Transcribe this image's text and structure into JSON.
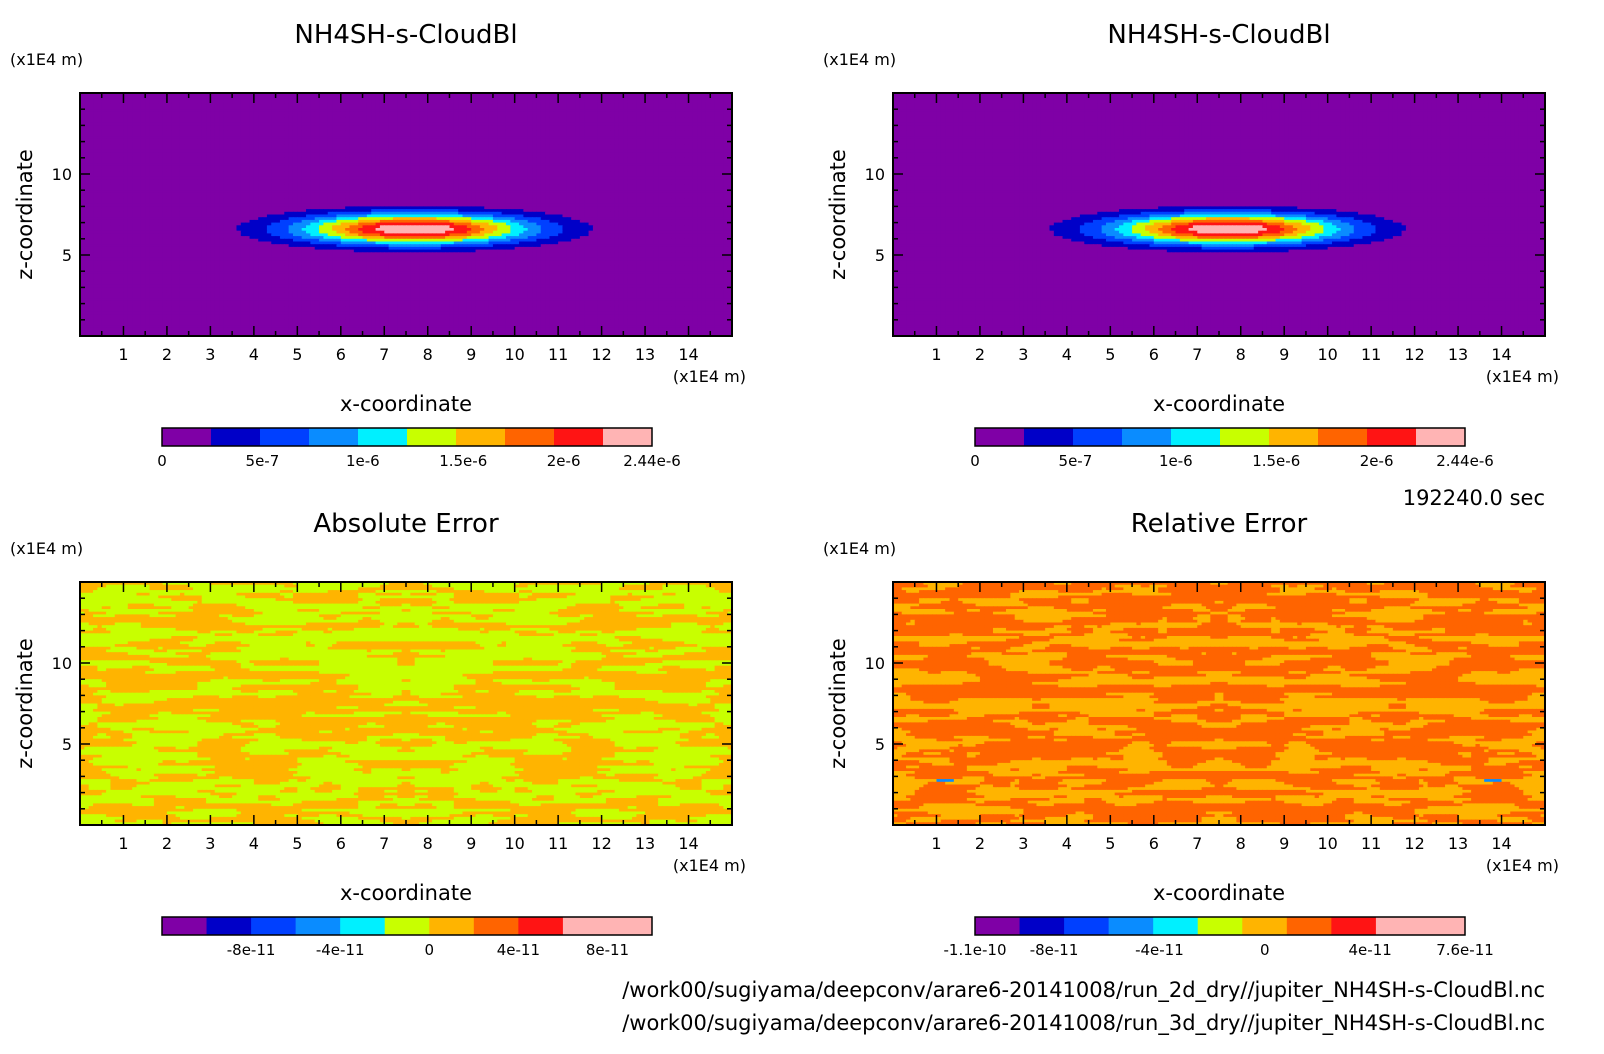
{
  "time_label": "192240.0 sec",
  "file_paths": [
    "/work00/sugiyama/deepconv/arare6-20141008/run_2d_dry//jupiter_NH4SH-s-CloudBl.nc",
    "/work00/sugiyama/deepconv/arare6-20141008/run_3d_dry//jupiter_NH4SH-s-CloudBl.nc"
  ],
  "chart_data": [
    {
      "type": "heatmap",
      "title": "NH4SH-s-CloudBl",
      "xlabel": "x-coordinate",
      "ylabel": "z-coordinate",
      "x_unit": "(x1E4 m)",
      "y_unit": "(x1E4 m)",
      "xlim": [
        0,
        15
      ],
      "ylim": [
        0,
        15
      ],
      "x_ticks": [
        "1",
        "2",
        "3",
        "4",
        "5",
        "6",
        "7",
        "8",
        "9",
        "10",
        "11",
        "12",
        "13",
        "14"
      ],
      "y_ticks": [
        "5",
        "10"
      ],
      "colorbar_levels": [
        0,
        2.44e-07,
        4.88e-07,
        7.32e-07,
        9.76e-07,
        1.22e-06,
        1.464e-06,
        1.708e-06,
        1.952e-06,
        2.196e-06,
        2.44e-06
      ],
      "colorbar_tick_labels": [
        "0",
        "5e-7",
        "1e-6",
        "1.5e-6",
        "2e-6",
        "2.44e-6"
      ],
      "background_value": 0,
      "feature": {
        "kind": "gaussian-blob",
        "peak": 2.44e-06,
        "center_x": 7.7,
        "center_z": 6.6,
        "half_width_x": 3.4,
        "half_width_z": 1.2
      }
    },
    {
      "type": "heatmap",
      "title": "NH4SH-s-CloudBl",
      "xlabel": "x-coordinate",
      "ylabel": "z-coordinate",
      "x_unit": "(x1E4 m)",
      "y_unit": "(x1E4 m)",
      "xlim": [
        0,
        15
      ],
      "ylim": [
        0,
        15
      ],
      "x_ticks": [
        "1",
        "2",
        "3",
        "4",
        "5",
        "6",
        "7",
        "8",
        "9",
        "10",
        "11",
        "12",
        "13",
        "14"
      ],
      "y_ticks": [
        "5",
        "10"
      ],
      "colorbar_levels": [
        0,
        2.44e-07,
        4.88e-07,
        7.32e-07,
        9.76e-07,
        1.22e-06,
        1.464e-06,
        1.708e-06,
        1.952e-06,
        2.196e-06,
        2.44e-06
      ],
      "colorbar_tick_labels": [
        "0",
        "5e-7",
        "1e-6",
        "1.5e-6",
        "2e-6",
        "2.44e-6"
      ],
      "background_value": 0,
      "feature": {
        "kind": "gaussian-blob",
        "peak": 2.44e-06,
        "center_x": 7.7,
        "center_z": 6.6,
        "half_width_x": 3.4,
        "half_width_z": 1.2
      }
    },
    {
      "type": "heatmap",
      "title": "Absolute Error",
      "xlabel": "x-coordinate",
      "ylabel": "z-coordinate",
      "x_unit": "(x1E4 m)",
      "y_unit": "(x1E4 m)",
      "xlim": [
        0,
        15
      ],
      "ylim": [
        0,
        15
      ],
      "x_ticks": [
        "1",
        "2",
        "3",
        "4",
        "5",
        "6",
        "7",
        "8",
        "9",
        "10",
        "11",
        "12",
        "13",
        "14"
      ],
      "y_ticks": [
        "5",
        "10"
      ],
      "colorbar_levels": [
        -1.2e-10,
        -1e-10,
        -8e-11,
        -6e-11,
        -4e-11,
        -2e-11,
        0,
        2e-11,
        4e-11,
        6e-11,
        8e-11,
        1e-10
      ],
      "colorbar_tick_labels": [
        "-8e-11",
        "-4e-11",
        "0",
        "4e-11",
        "8e-11"
      ],
      "pattern": {
        "kind": "noise-two-level",
        "low_value": -1e-11,
        "high_value": 1e-11,
        "threshold": 0.52,
        "seed": 7
      }
    },
    {
      "type": "heatmap",
      "title": "Relative Error",
      "xlabel": "x-coordinate",
      "ylabel": "z-coordinate",
      "x_unit": "(x1E4 m)",
      "y_unit": "(x1E4 m)",
      "xlim": [
        0,
        15
      ],
      "ylim": [
        0,
        15
      ],
      "x_ticks": [
        "1",
        "2",
        "3",
        "4",
        "5",
        "6",
        "7",
        "8",
        "9",
        "10",
        "11",
        "12",
        "13",
        "14"
      ],
      "y_ticks": [
        "5",
        "10"
      ],
      "colorbar_levels": [
        -1.1e-10,
        -9.5e-11,
        -8e-11,
        -6.5e-11,
        -4e-11,
        -2e-11,
        0,
        2e-11,
        3e-11,
        4e-11,
        6e-11,
        7.6e-11
      ],
      "colorbar_tick_labels": [
        "-1.1e-10",
        "-8e-11",
        "-4e-11",
        "0",
        "4e-11",
        "7.6e-11"
      ],
      "pattern": {
        "kind": "noise-two-level",
        "low_value": 1e-11,
        "high_value": 2.5e-11,
        "threshold": 0.45,
        "seed": 13
      },
      "spots": [
        {
          "x": 1.2,
          "z": 2.7,
          "value": -5e-11
        },
        {
          "x": 13.8,
          "z": 2.7,
          "value": -5e-11
        }
      ]
    }
  ]
}
